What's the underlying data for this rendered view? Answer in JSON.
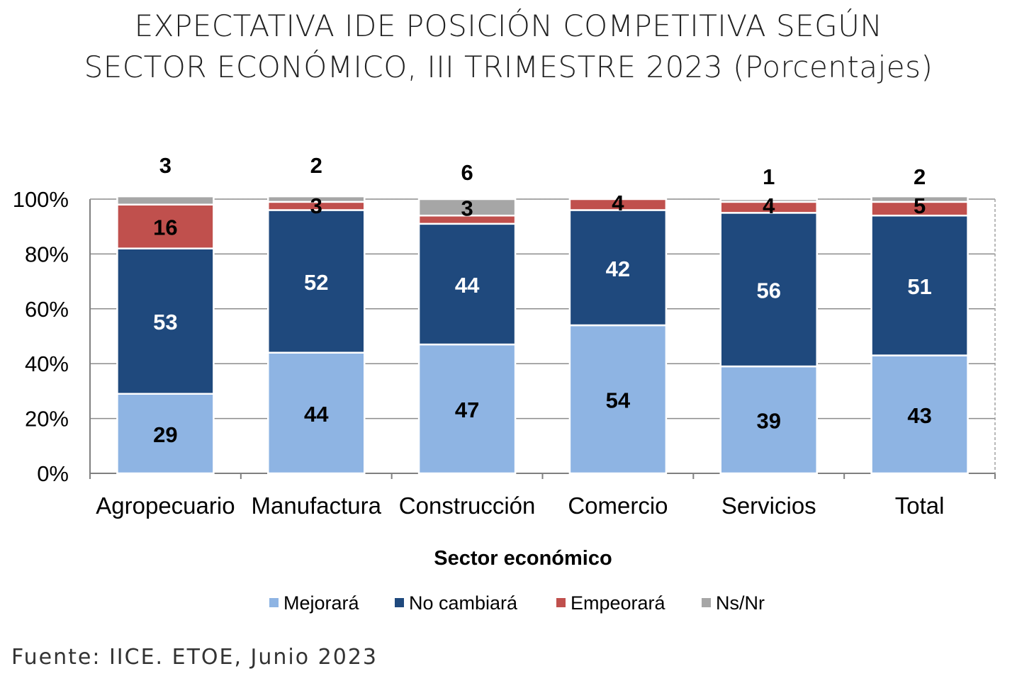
{
  "title": {
    "line1": "EXPECTATIVA IDE POSICIÓN COMPETITIVA SEGÚN",
    "line2": "SECTOR ECONÓMICO, III TRIMESTRE 2023 (Porcentajes)"
  },
  "source": "Fuente:  IICE. ETOE, Junio 2023",
  "chart_data": {
    "type": "bar",
    "stacked": true,
    "categories": [
      "Agropecuario",
      "Manufactura",
      "Construcción",
      "Comercio",
      "Servicios",
      "Total"
    ],
    "series": [
      {
        "name": "Mejorará",
        "color": "#8eb4e3",
        "label_color": "#000000",
        "values": [
          29,
          44,
          47,
          54,
          39,
          43
        ]
      },
      {
        "name": "No cambiará",
        "color": "#1f497d",
        "label_color": "#ffffff",
        "values": [
          53,
          52,
          44,
          42,
          56,
          51
        ]
      },
      {
        "name": "Empeorará",
        "color": "#c0504d",
        "label_color": "#000000",
        "values": [
          16,
          3,
          3,
          4,
          4,
          5
        ]
      },
      {
        "name": "Ns/Nr",
        "color": "#a6a6a6",
        "label_color": "#000000",
        "values": [
          3,
          2,
          6,
          0,
          1,
          2
        ]
      }
    ],
    "xlabel": "Sector económico",
    "ylabel": "",
    "ylim": [
      0,
      100
    ],
    "yticks": [
      "0%",
      "20%",
      "40%",
      "60%",
      "80%",
      "100%"
    ],
    "grid": true,
    "legend": "bottom"
  }
}
